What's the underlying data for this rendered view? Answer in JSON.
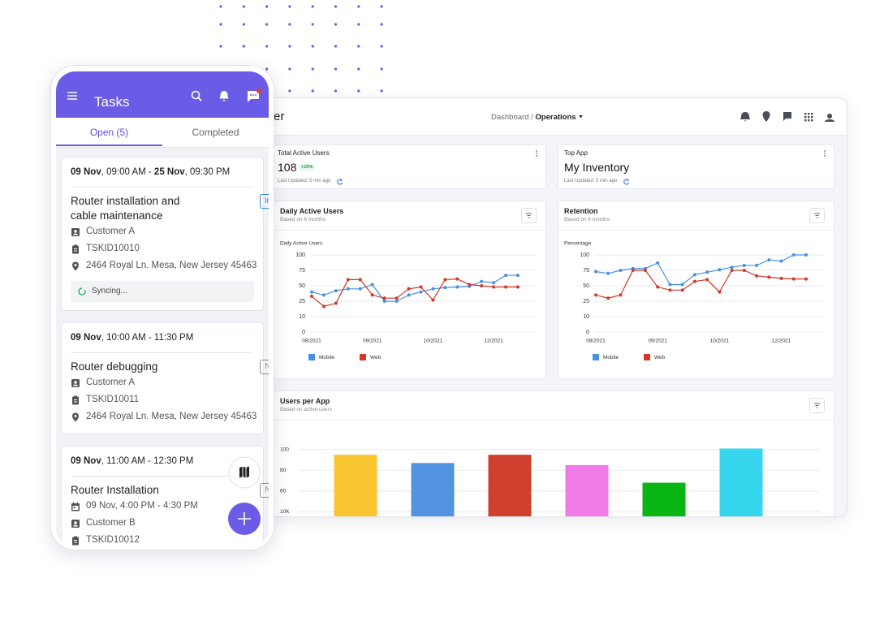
{
  "phone": {
    "header": {
      "title": "Tasks"
    },
    "tabs": [
      "Open (5)",
      "Completed"
    ],
    "tasks": [
      {
        "date_parts": [
          "09 Nov",
          ", 09:00 AM - ",
          "25 Nov",
          ", 09:30 PM"
        ],
        "title": "Router installation and cable maintenance",
        "status": "In Progress",
        "status_color": "#2f80ed",
        "details": {
          "customer": "Customer A",
          "task_id": "TSKID10010",
          "address": "2464 Royal Ln. Mesa, New Jersey 45463"
        },
        "sync": "Syncing..."
      },
      {
        "date_parts": [
          "09 Nov",
          ", 10:00 AM - 11:30 PM"
        ],
        "title": "Router debugging",
        "status": "Not Started",
        "status_color": "#8c8c8c",
        "details": {
          "customer": "Customer A",
          "task_id": "TSKID10011",
          "address": "2464 Royal Ln. Mesa, New Jersey 45463"
        }
      },
      {
        "date_parts": [
          "09 Nov",
          ", 11:00 AM - 12:30 PM"
        ],
        "title": "Router Installation",
        "status": "Not Started",
        "status_color": "#8c8c8c",
        "details": {
          "schedule": "09 Nov, 4:00 PM - 4:30 PM",
          "customer": "Customer B",
          "task_id": "TSKID10012"
        }
      }
    ]
  },
  "dashboard": {
    "title_fragment": "er",
    "breadcrumb": [
      "Dashboard",
      "/",
      "Operations"
    ],
    "kpis": [
      {
        "title": "Total Active Users",
        "value": 108,
        "badge": "+10%",
        "updated": "Last Updated: 5 min ago"
      },
      {
        "title": "Top App",
        "value": "My Inventory",
        "updated": "Last Updated: 5 min ago"
      }
    ]
  },
  "chart_data": [
    {
      "type": "line",
      "title": "Daily Active Users",
      "subtitle": "Based on 6 months",
      "y_label": "Daily Active Users",
      "categories": [
        "08/2021",
        null,
        null,
        null,
        null,
        "09/2021",
        null,
        null,
        null,
        null,
        "10/2021",
        null,
        null,
        null,
        null,
        "12/2021",
        null,
        null
      ],
      "series": [
        {
          "name": "Mobile",
          "color": "#4a90e2",
          "values": [
            40,
            35,
            42,
            45,
            45,
            52,
            25,
            25,
            35,
            40,
            45,
            47,
            48,
            49,
            57,
            55,
            67,
            67
          ]
        },
        {
          "name": "Web",
          "color": "#d0392b",
          "values": [
            33,
            20,
            23,
            60,
            60,
            35,
            30,
            30,
            45,
            48,
            27,
            60,
            61,
            52,
            50,
            48,
            48,
            48
          ]
        }
      ],
      "ylim": [
        0,
        100
      ],
      "yticks": [
        0,
        10,
        25,
        50,
        75,
        100
      ],
      "grid": true,
      "legend": "bottom-left"
    },
    {
      "type": "line",
      "title": "Retention",
      "subtitle": "Based on 6 months",
      "y_label": "Percentage",
      "categories": [
        "08/2021",
        null,
        null,
        null,
        null,
        "09/2021",
        null,
        null,
        null,
        null,
        "10/2021",
        null,
        null,
        null,
        null,
        "12/2021",
        null,
        null
      ],
      "series": [
        {
          "name": "Mobile",
          "color": "#4a90e2",
          "values": [
            73,
            70,
            75,
            78,
            78,
            87,
            52,
            52,
            68,
            72,
            76,
            80,
            83,
            83,
            92,
            90,
            100,
            100
          ]
        },
        {
          "name": "Web",
          "color": "#d0392b",
          "values": [
            35,
            30,
            35,
            75,
            75,
            48,
            43,
            43,
            57,
            60,
            40,
            75,
            75,
            66,
            64,
            62,
            61,
            61
          ]
        }
      ],
      "ylim": [
        0,
        100
      ],
      "yticks": [
        0,
        10,
        25,
        50,
        75,
        100
      ],
      "grid": true,
      "legend": "bottom-left"
    },
    {
      "type": "bar",
      "title": "Users per App",
      "subtitle": "Based on active users",
      "categories": [
        null,
        null,
        null,
        null,
        null,
        null
      ],
      "values": [
        95,
        87,
        95,
        85,
        68,
        101
      ],
      "colors": [
        "#f9c631",
        "#5294e2",
        "#d0402f",
        "#f17be6",
        "#08b513",
        "#37d6ef"
      ],
      "ylim": [
        23,
        110
      ],
      "yticks": [
        {
          "value": 40,
          "label": "10K"
        },
        60,
        80,
        100
      ],
      "grid": true
    }
  ]
}
